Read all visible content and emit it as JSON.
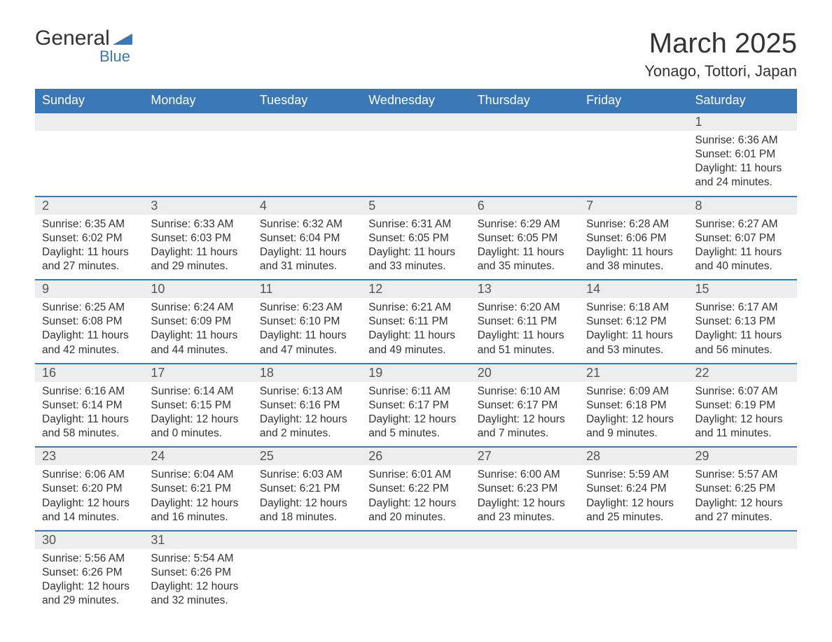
{
  "brand": {
    "line1": "General",
    "line2": "Blue",
    "accent_color": "#3a77b7"
  },
  "title": "March 2025",
  "location": "Yonago, Tottori, Japan",
  "colors": {
    "header_bg": "#3a77b7",
    "header_text": "#ffffff",
    "daynum_bg": "#ededed",
    "row_divider": "#3a77b7",
    "body_text": "#333333",
    "page_bg": "#ffffff"
  },
  "typography": {
    "title_fontsize_pt": 30,
    "location_fontsize_pt": 17,
    "header_fontsize_pt": 14,
    "daynum_fontsize_pt": 14,
    "body_fontsize_pt": 12,
    "font_family": "Arial"
  },
  "layout": {
    "columns": 7,
    "rows": 6,
    "first_day_column_index": 6
  },
  "weekdays": [
    "Sunday",
    "Monday",
    "Tuesday",
    "Wednesday",
    "Thursday",
    "Friday",
    "Saturday"
  ],
  "labels": {
    "sunrise": "Sunrise:",
    "sunset": "Sunset:",
    "daylight": "Daylight:"
  },
  "days": [
    {
      "n": 1,
      "sunrise": "6:36 AM",
      "sunset": "6:01 PM",
      "daylight": "11 hours and 24 minutes."
    },
    {
      "n": 2,
      "sunrise": "6:35 AM",
      "sunset": "6:02 PM",
      "daylight": "11 hours and 27 minutes."
    },
    {
      "n": 3,
      "sunrise": "6:33 AM",
      "sunset": "6:03 PM",
      "daylight": "11 hours and 29 minutes."
    },
    {
      "n": 4,
      "sunrise": "6:32 AM",
      "sunset": "6:04 PM",
      "daylight": "11 hours and 31 minutes."
    },
    {
      "n": 5,
      "sunrise": "6:31 AM",
      "sunset": "6:05 PM",
      "daylight": "11 hours and 33 minutes."
    },
    {
      "n": 6,
      "sunrise": "6:29 AM",
      "sunset": "6:05 PM",
      "daylight": "11 hours and 35 minutes."
    },
    {
      "n": 7,
      "sunrise": "6:28 AM",
      "sunset": "6:06 PM",
      "daylight": "11 hours and 38 minutes."
    },
    {
      "n": 8,
      "sunrise": "6:27 AM",
      "sunset": "6:07 PM",
      "daylight": "11 hours and 40 minutes."
    },
    {
      "n": 9,
      "sunrise": "6:25 AM",
      "sunset": "6:08 PM",
      "daylight": "11 hours and 42 minutes."
    },
    {
      "n": 10,
      "sunrise": "6:24 AM",
      "sunset": "6:09 PM",
      "daylight": "11 hours and 44 minutes."
    },
    {
      "n": 11,
      "sunrise": "6:23 AM",
      "sunset": "6:10 PM",
      "daylight": "11 hours and 47 minutes."
    },
    {
      "n": 12,
      "sunrise": "6:21 AM",
      "sunset": "6:11 PM",
      "daylight": "11 hours and 49 minutes."
    },
    {
      "n": 13,
      "sunrise": "6:20 AM",
      "sunset": "6:11 PM",
      "daylight": "11 hours and 51 minutes."
    },
    {
      "n": 14,
      "sunrise": "6:18 AM",
      "sunset": "6:12 PM",
      "daylight": "11 hours and 53 minutes."
    },
    {
      "n": 15,
      "sunrise": "6:17 AM",
      "sunset": "6:13 PM",
      "daylight": "11 hours and 56 minutes."
    },
    {
      "n": 16,
      "sunrise": "6:16 AM",
      "sunset": "6:14 PM",
      "daylight": "11 hours and 58 minutes."
    },
    {
      "n": 17,
      "sunrise": "6:14 AM",
      "sunset": "6:15 PM",
      "daylight": "12 hours and 0 minutes."
    },
    {
      "n": 18,
      "sunrise": "6:13 AM",
      "sunset": "6:16 PM",
      "daylight": "12 hours and 2 minutes."
    },
    {
      "n": 19,
      "sunrise": "6:11 AM",
      "sunset": "6:17 PM",
      "daylight": "12 hours and 5 minutes."
    },
    {
      "n": 20,
      "sunrise": "6:10 AM",
      "sunset": "6:17 PM",
      "daylight": "12 hours and 7 minutes."
    },
    {
      "n": 21,
      "sunrise": "6:09 AM",
      "sunset": "6:18 PM",
      "daylight": "12 hours and 9 minutes."
    },
    {
      "n": 22,
      "sunrise": "6:07 AM",
      "sunset": "6:19 PM",
      "daylight": "12 hours and 11 minutes."
    },
    {
      "n": 23,
      "sunrise": "6:06 AM",
      "sunset": "6:20 PM",
      "daylight": "12 hours and 14 minutes."
    },
    {
      "n": 24,
      "sunrise": "6:04 AM",
      "sunset": "6:21 PM",
      "daylight": "12 hours and 16 minutes."
    },
    {
      "n": 25,
      "sunrise": "6:03 AM",
      "sunset": "6:21 PM",
      "daylight": "12 hours and 18 minutes."
    },
    {
      "n": 26,
      "sunrise": "6:01 AM",
      "sunset": "6:22 PM",
      "daylight": "12 hours and 20 minutes."
    },
    {
      "n": 27,
      "sunrise": "6:00 AM",
      "sunset": "6:23 PM",
      "daylight": "12 hours and 23 minutes."
    },
    {
      "n": 28,
      "sunrise": "5:59 AM",
      "sunset": "6:24 PM",
      "daylight": "12 hours and 25 minutes."
    },
    {
      "n": 29,
      "sunrise": "5:57 AM",
      "sunset": "6:25 PM",
      "daylight": "12 hours and 27 minutes."
    },
    {
      "n": 30,
      "sunrise": "5:56 AM",
      "sunset": "6:26 PM",
      "daylight": "12 hours and 29 minutes."
    },
    {
      "n": 31,
      "sunrise": "5:54 AM",
      "sunset": "6:26 PM",
      "daylight": "12 hours and 32 minutes."
    }
  ]
}
